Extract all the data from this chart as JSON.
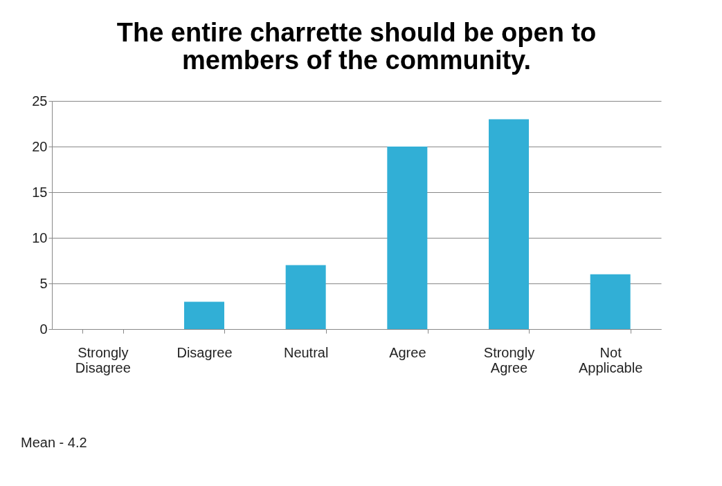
{
  "chart_data": {
    "type": "bar",
    "title": "The entire charrette should be open to members of the community.",
    "categories": [
      "Strongly Disagree",
      "Disagree",
      "Neutral",
      "Agree",
      "Strongly Agree",
      "Not Applicable"
    ],
    "values": [
      0,
      3,
      7,
      20,
      23,
      6
    ],
    "color": "#31afd6",
    "ylim": [
      0,
      25
    ],
    "yticks": [
      0,
      5,
      10,
      15,
      20,
      25
    ],
    "grid": "y",
    "annotations": [
      "Mean - 4.2"
    ]
  }
}
